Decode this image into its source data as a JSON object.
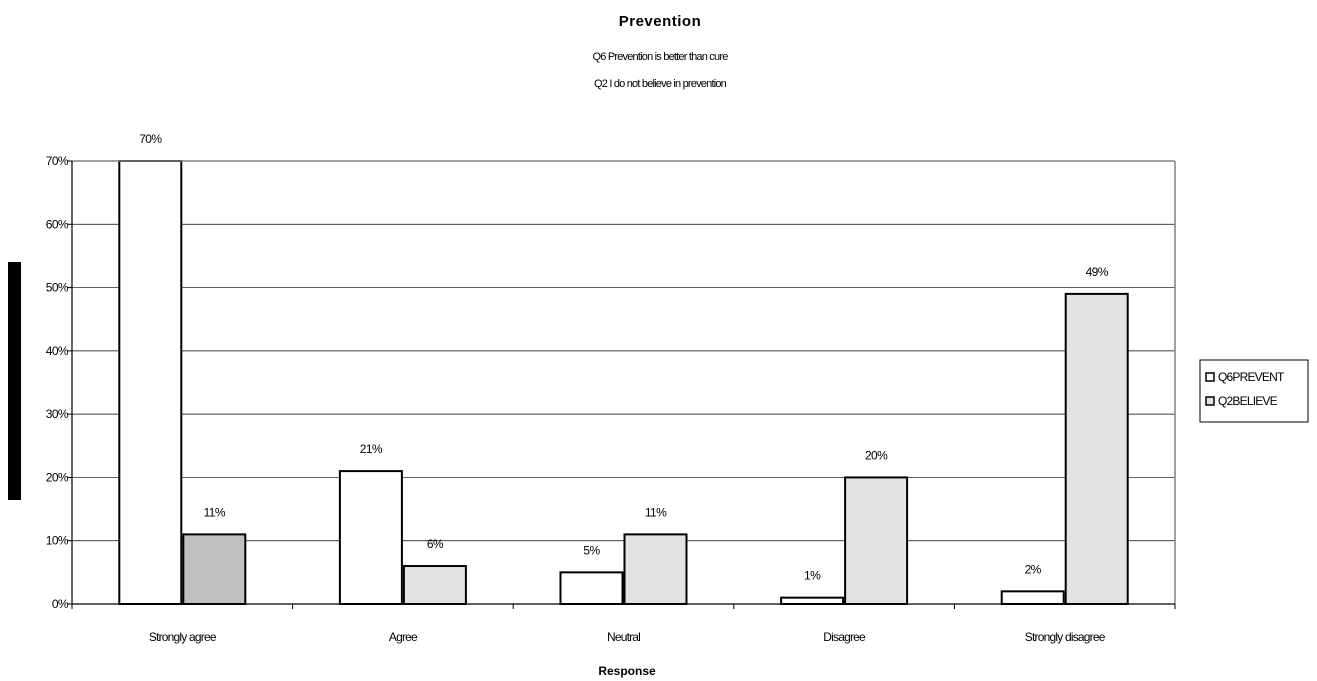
{
  "chart_data": {
    "type": "bar",
    "title": "Prevention",
    "subtitle_lines": [
      "Q6 Prevention is better than cure",
      "Q2 I do not believe in prevention"
    ],
    "xlabel": "Response",
    "ylabel": "",
    "categories": [
      "Strongly agree",
      "Agree",
      "Neutral",
      "Disagree",
      "Strongly disagree"
    ],
    "series": [
      {
        "name": "Q6PREVENT",
        "values": [
          70,
          21,
          5,
          1,
          2
        ],
        "labels": [
          "70%",
          "21%",
          "5%",
          "1%",
          "2%"
        ],
        "color": "#ffffff"
      },
      {
        "name": "Q2BELIEVE",
        "values": [
          11,
          6,
          11,
          20,
          49
        ],
        "labels": [
          "11%",
          "6%",
          "11%",
          "20%",
          "49%"
        ],
        "color": "#e3e3e3"
      }
    ],
    "highlight": {
      "series": 1,
      "category": 0,
      "color": "#c0c0c0"
    },
    "ylim": [
      0,
      70
    ],
    "yticks": [
      "0%",
      "10%",
      "20%",
      "30%",
      "40%",
      "50%",
      "60%",
      "70%"
    ],
    "grid": true,
    "legend_position": "right"
  }
}
